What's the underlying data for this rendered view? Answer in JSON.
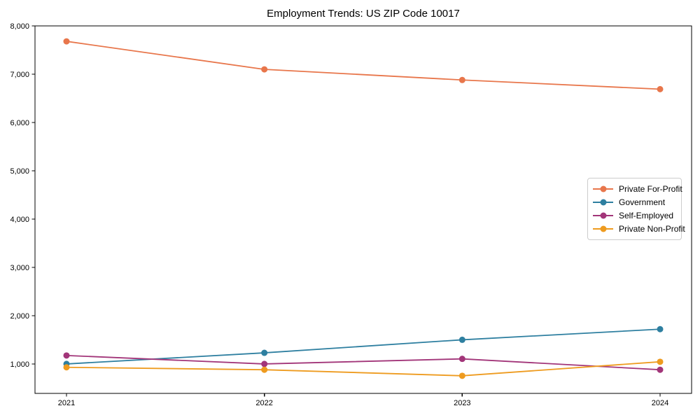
{
  "chart_data": {
    "type": "line",
    "title": "Employment Trends: US ZIP Code 10017",
    "xlabel": "",
    "ylabel": "",
    "categories": [
      "2021",
      "2022",
      "2023",
      "2024"
    ],
    "series": [
      {
        "name": "Private For-Profit",
        "color": "#e8764b",
        "values": [
          7680,
          7100,
          6880,
          6690
        ]
      },
      {
        "name": "Government",
        "color": "#2e7fa0",
        "values": [
          1000,
          1230,
          1500,
          1720
        ]
      },
      {
        "name": "Self-Employed",
        "color": "#a23579",
        "values": [
          1175,
          1000,
          1105,
          880
        ]
      },
      {
        "name": "Private Non-Profit",
        "color": "#ee9b1f",
        "values": [
          930,
          880,
          755,
          1045
        ]
      }
    ],
    "y_ticks": [
      1000,
      2000,
      3000,
      4000,
      5000,
      6000,
      7000,
      8000
    ],
    "y_tick_labels": [
      "1,000",
      "2,000",
      "3,000",
      "4,000",
      "5,000",
      "6,000",
      "7,000",
      "8,000"
    ],
    "ylim": [
      390,
      8000
    ],
    "grid": false,
    "legend_position": "center-right",
    "marker": "circle",
    "axis_color": "#000000",
    "background_color": "#ffffff"
  }
}
